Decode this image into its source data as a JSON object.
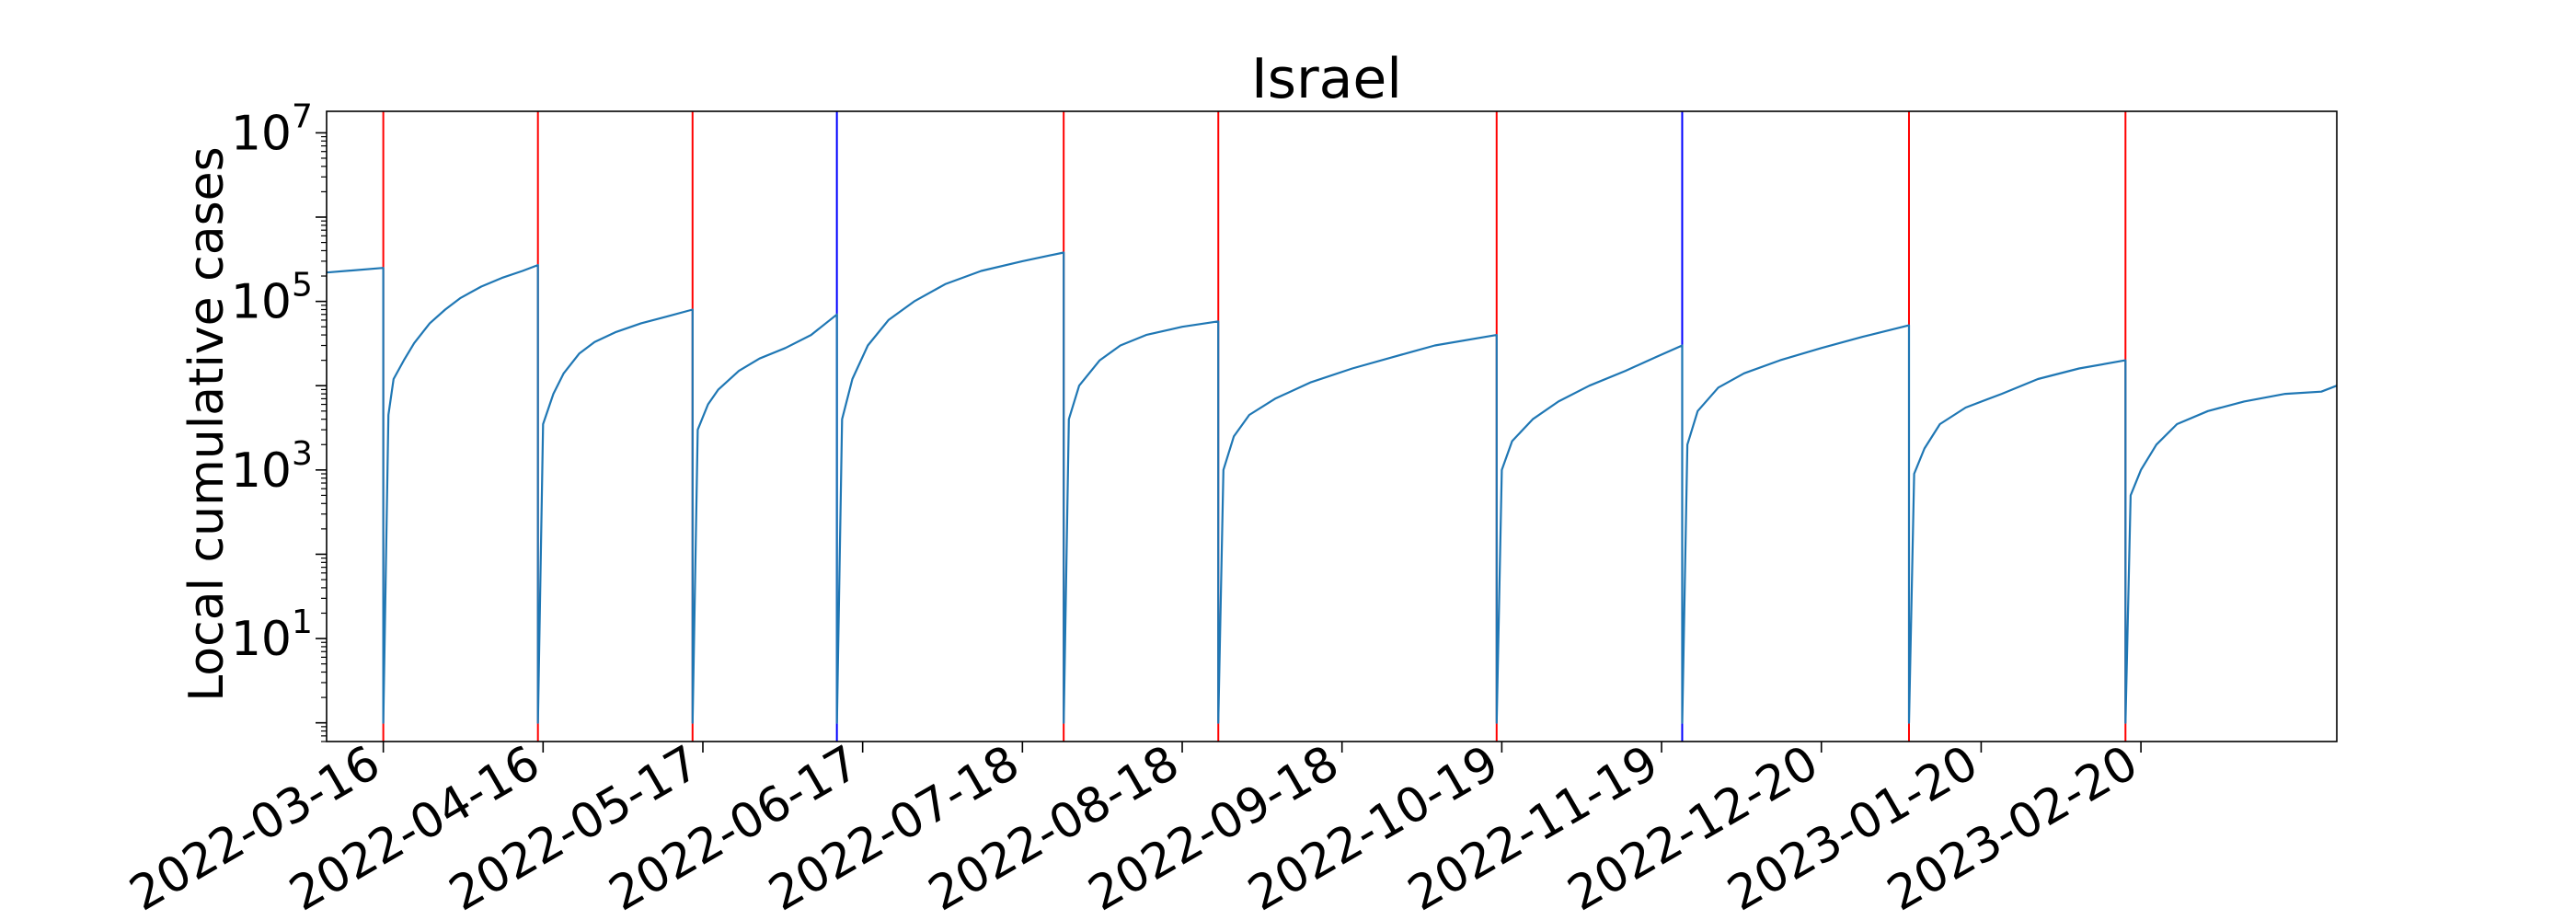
{
  "chart_data": {
    "type": "line",
    "title": "Israel",
    "xlabel": "",
    "ylabel": "Local cumulative cases",
    "y_scale": "log",
    "ylim": [
      0.6,
      18000000
    ],
    "y_ticks": [
      {
        "value": 10,
        "base": "10",
        "exponent": "1"
      },
      {
        "value": 1000,
        "base": "10",
        "exponent": "3"
      },
      {
        "value": 100000,
        "base": "10",
        "exponent": "5"
      },
      {
        "value": 10000000,
        "base": "10",
        "exponent": "7"
      }
    ],
    "xlim": [
      "2022-03-05",
      "2023-03-30"
    ],
    "x_ticks": [
      "2022-03-16",
      "2022-04-16",
      "2022-05-17",
      "2022-06-17",
      "2022-07-18",
      "2022-08-18",
      "2022-09-18",
      "2022-10-19",
      "2022-11-19",
      "2022-12-20",
      "2023-01-20",
      "2023-02-20"
    ],
    "grid": false,
    "line_color": "#1f77b4",
    "vlines": [
      {
        "date": "2022-03-16",
        "color": "#ff0000"
      },
      {
        "date": "2022-04-15",
        "color": "#ff0000"
      },
      {
        "date": "2022-05-15",
        "color": "#ff0000"
      },
      {
        "date": "2022-06-12",
        "color": "#0000ff"
      },
      {
        "date": "2022-07-26",
        "color": "#ff0000"
      },
      {
        "date": "2022-08-25",
        "color": "#ff0000"
      },
      {
        "date": "2022-10-18",
        "color": "#ff0000"
      },
      {
        "date": "2022-11-23",
        "color": "#0000ff"
      },
      {
        "date": "2023-01-06",
        "color": "#ff0000"
      },
      {
        "date": "2023-02-17",
        "color": "#ff0000"
      }
    ],
    "series": [
      {
        "points": [
          [
            "2022-03-05",
            220000
          ],
          [
            "2022-03-16",
            250000
          ],
          [
            "2022-03-16",
            1
          ],
          [
            "2022-03-17",
            4500
          ],
          [
            "2022-03-18",
            12000
          ],
          [
            "2022-03-20",
            20000
          ],
          [
            "2022-03-22",
            32000
          ],
          [
            "2022-03-25",
            55000
          ],
          [
            "2022-03-28",
            80000
          ],
          [
            "2022-03-31",
            110000
          ],
          [
            "2022-04-04",
            150000
          ],
          [
            "2022-04-08",
            190000
          ],
          [
            "2022-04-12",
            230000
          ],
          [
            "2022-04-15",
            270000
          ],
          [
            "2022-04-15",
            1
          ],
          [
            "2022-04-16",
            3500
          ],
          [
            "2022-04-18",
            8000
          ],
          [
            "2022-04-20",
            14000
          ],
          [
            "2022-04-23",
            24000
          ],
          [
            "2022-04-26",
            33000
          ],
          [
            "2022-04-30",
            43000
          ],
          [
            "2022-05-05",
            55000
          ],
          [
            "2022-05-10",
            66000
          ],
          [
            "2022-05-15",
            80000
          ],
          [
            "2022-05-15",
            1
          ],
          [
            "2022-05-16",
            3000
          ],
          [
            "2022-05-18",
            6000
          ],
          [
            "2022-05-20",
            9000
          ],
          [
            "2022-05-24",
            15000
          ],
          [
            "2022-05-28",
            21000
          ],
          [
            "2022-06-02",
            28000
          ],
          [
            "2022-06-07",
            40000
          ],
          [
            "2022-06-12",
            70000
          ],
          [
            "2022-06-12",
            1
          ],
          [
            "2022-06-13",
            4000
          ],
          [
            "2022-06-15",
            12000
          ],
          [
            "2022-06-18",
            30000
          ],
          [
            "2022-06-22",
            60000
          ],
          [
            "2022-06-27",
            100000
          ],
          [
            "2022-07-03",
            160000
          ],
          [
            "2022-07-10",
            230000
          ],
          [
            "2022-07-18",
            300000
          ],
          [
            "2022-07-26",
            380000
          ],
          [
            "2022-07-26",
            1
          ],
          [
            "2022-07-27",
            4000
          ],
          [
            "2022-07-29",
            10000
          ],
          [
            "2022-08-02",
            20000
          ],
          [
            "2022-08-06",
            30000
          ],
          [
            "2022-08-11",
            40000
          ],
          [
            "2022-08-18",
            50000
          ],
          [
            "2022-08-25",
            58000
          ],
          [
            "2022-08-25",
            1
          ],
          [
            "2022-08-26",
            1000
          ],
          [
            "2022-08-28",
            2500
          ],
          [
            "2022-08-31",
            4500
          ],
          [
            "2022-09-05",
            7000
          ],
          [
            "2022-09-12",
            11000
          ],
          [
            "2022-09-20",
            16000
          ],
          [
            "2022-09-28",
            22000
          ],
          [
            "2022-10-06",
            30000
          ],
          [
            "2022-10-18",
            40000
          ],
          [
            "2022-10-18",
            1
          ],
          [
            "2022-10-19",
            1000
          ],
          [
            "2022-10-21",
            2200
          ],
          [
            "2022-10-25",
            4000
          ],
          [
            "2022-10-30",
            6500
          ],
          [
            "2022-11-05",
            10000
          ],
          [
            "2022-11-12",
            15000
          ],
          [
            "2022-11-18",
            22000
          ],
          [
            "2022-11-23",
            30000
          ],
          [
            "2022-11-23",
            1
          ],
          [
            "2022-11-24",
            2000
          ],
          [
            "2022-11-26",
            5000
          ],
          [
            "2022-11-30",
            9500
          ],
          [
            "2022-12-05",
            14000
          ],
          [
            "2022-12-12",
            20000
          ],
          [
            "2022-12-20",
            28000
          ],
          [
            "2022-12-28",
            38000
          ],
          [
            "2023-01-06",
            52000
          ],
          [
            "2023-01-06",
            1
          ],
          [
            "2023-01-07",
            900
          ],
          [
            "2023-01-09",
            1800
          ],
          [
            "2023-01-12",
            3500
          ],
          [
            "2023-01-17",
            5500
          ],
          [
            "2023-01-24",
            8000
          ],
          [
            "2023-01-31",
            12000
          ],
          [
            "2023-02-08",
            16000
          ],
          [
            "2023-02-17",
            20000
          ],
          [
            "2023-02-17",
            1
          ],
          [
            "2023-02-18",
            500
          ],
          [
            "2023-02-20",
            1000
          ],
          [
            "2023-02-23",
            2000
          ],
          [
            "2023-02-27",
            3500
          ],
          [
            "2023-03-05",
            5000
          ],
          [
            "2023-03-12",
            6500
          ],
          [
            "2023-03-20",
            8000
          ],
          [
            "2023-03-27",
            8500
          ],
          [
            "2023-03-30",
            10000
          ]
        ]
      }
    ]
  }
}
